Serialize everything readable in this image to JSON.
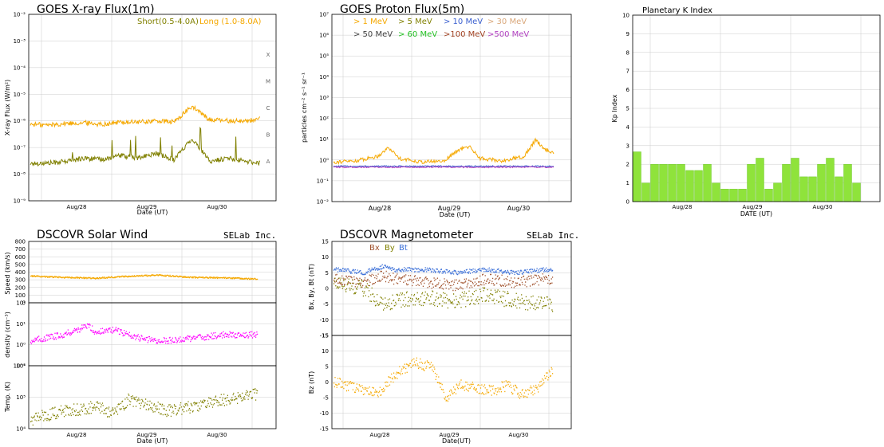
{
  "colors": {
    "short_flux": "#808000",
    "long_flux": "#f5a800",
    "kp_bar": "#8fe33b",
    "kp_bar_edge": "#63c020",
    "proton_1mev": "#f5a800",
    "proton_5mev": "#808000",
    "proton_10mev": "#3a5fcf",
    "proton_30mev": "#d9a77a",
    "proton_50mev": "#404040",
    "proton_60mev": "#22c022",
    "proton_100mev": "#a04020",
    "proton_500mev": "#b040c0",
    "wind_speed": "#f5a800",
    "wind_density": "#ff00ff",
    "wind_temp": "#808000",
    "mag_bx": "#a0522d",
    "mag_by": "#808000",
    "mag_bt": "#3a6fd8",
    "mag_bz": "#f5a800"
  },
  "charts": {
    "xray": {
      "title": "GOES X-ray Flux(1m)",
      "chart_data": {
        "type": "line",
        "title": "GOES X-ray Flux(1m)",
        "xlabel": "Date (UT)",
        "ylabel": "X-ray Flux (W/m²)",
        "yscale": "log",
        "ylim": [
          1e-09,
          0.01
        ],
        "y_tick_labels": [
          "10⁻²",
          "10⁻³",
          "10⁻⁴",
          "10⁻⁵",
          "10⁻⁶",
          "10⁻⁷",
          "10⁻⁸",
          "10⁻⁹"
        ],
        "x_tick_labels": [
          "Aug/28",
          "Aug/29",
          "Aug/30"
        ],
        "flare_class_labels": [
          "X",
          "M",
          "C",
          "B",
          "A"
        ],
        "grid": true,
        "legend": [
          "Short(0.5-4.0A)",
          "Long (1.0-8.0A)"
        ],
        "series": [
          {
            "name": "Short(0.5-4.0A)",
            "x_days": [
              0.0,
              0.25,
              0.5,
              0.75,
              1.0,
              1.25,
              1.5,
              1.75,
              2.0,
              2.25,
              2.5,
              2.75,
              3.0,
              3.25,
              3.5
            ],
            "values": [
              2.5e-08,
              2.6e-08,
              3e-08,
              4e-08,
              3.5e-08,
              5e-08,
              4e-08,
              6e-08,
              3.5e-08,
              2.2e-07,
              3e-08,
              4e-08,
              3e-08,
              2.5e-08,
              3e-08
            ]
          },
          {
            "name": "Long (1.0-8.0A)",
            "x_days": [
              0.0,
              0.25,
              0.5,
              0.75,
              1.0,
              1.25,
              1.5,
              1.75,
              2.0,
              2.25,
              2.5,
              2.75,
              3.0,
              3.25,
              3.5
            ],
            "values": [
              7.5e-07,
              7e-07,
              8e-07,
              8.5e-07,
              7.5e-07,
              9e-07,
              9e-07,
              1e-06,
              9e-07,
              3.5e-06,
              1.1e-06,
              1e-06,
              1e-06,
              1.2e-06,
              1e-06
            ]
          }
        ]
      }
    },
    "proton": {
      "title": "GOES Proton Flux(5m)",
      "chart_data": {
        "type": "line",
        "title": "GOES Proton Flux(5m)",
        "xlabel": "Date (UT)",
        "ylabel": "particles cm⁻² s⁻¹ sr⁻¹",
        "yscale": "log",
        "ylim": [
          0.01,
          10000000
        ],
        "y_tick_labels": [
          "10⁷",
          "10⁶",
          "10⁵",
          "10⁴",
          "10³",
          "10²",
          "10¹",
          "10⁰",
          "10⁻¹",
          "10⁻²"
        ],
        "x_tick_labels": [
          "Aug/28",
          "Aug/29",
          "Aug/30"
        ],
        "grid": true,
        "legend_row1": [
          "> 1 MeV",
          "> 5 MeV",
          "> 10 MeV",
          "> 30 MeV"
        ],
        "legend_row2": [
          "> 50 MeV",
          "> 60 MeV",
          ">100 MeV",
          ">500 MeV"
        ],
        "series": [
          {
            "name": "> 1 MeV",
            "x_days": [
              0.0,
              0.3,
              0.6,
              0.75,
              0.9,
              1.2,
              1.5,
              1.7,
              1.85,
              2.0,
              2.3,
              2.6,
              2.75,
              2.9,
              3.0
            ],
            "values": [
              0.8,
              0.9,
              1.5,
              4,
              1.2,
              0.8,
              0.9,
              3,
              4.5,
              1.2,
              0.9,
              1.5,
              9,
              3,
              2
            ]
          },
          {
            "name": "> 10 MeV",
            "x_days": [
              0.0,
              1.0,
              2.0,
              3.0
            ],
            "values": [
              0.5,
              0.5,
              0.5,
              0.5
            ]
          },
          {
            "name": ">500 MeV",
            "x_days": [
              0.0,
              1.0,
              2.0,
              3.0
            ],
            "values": [
              0.45,
              0.45,
              0.45,
              0.45
            ]
          }
        ]
      }
    },
    "kp": {
      "title": "Planetary K Index",
      "chart_data": {
        "type": "bar",
        "title": "Planetary K Index",
        "xlabel": "DATE (UT)",
        "ylabel": "Kp Index",
        "ylim": [
          0,
          10
        ],
        "y_ticks": [
          0,
          1,
          2,
          3,
          4,
          5,
          6,
          7,
          8,
          9,
          10
        ],
        "x_tick_labels": [
          "Aug/28",
          "Aug/29",
          "Aug/30"
        ],
        "grid": true,
        "values": [
          2.67,
          1.0,
          2.0,
          2.0,
          2.0,
          2.0,
          1.67,
          1.67,
          2.0,
          1.0,
          0.67,
          0.67,
          0.67,
          2.0,
          2.33,
          0.67,
          1.0,
          2.0,
          2.33,
          1.33,
          1.33,
          2.0,
          2.33,
          1.33,
          2.0,
          1.0
        ]
      }
    },
    "wind": {
      "title": "DSCOVR Solar Wind",
      "brand": "SELab Inc.",
      "chart_data": {
        "type": "line",
        "title": "DSCOVR Solar Wind",
        "xlabel": "Date (UT)",
        "x_tick_labels": [
          "Aug/28",
          "Aug/29",
          "Aug/30"
        ],
        "grid": true,
        "subplots": [
          {
            "ylabel": "Speed (km/s)",
            "ylim": [
              0,
              800
            ],
            "y_ticks": [
              0,
              100,
              200,
              300,
              400,
              500,
              600,
              700,
              800
            ],
            "x_days": [
              0.0,
              0.5,
              1.0,
              1.5,
              2.0,
              2.5,
              3.0,
              3.5
            ],
            "values": [
              350,
              330,
              320,
              345,
              360,
              330,
              325,
              310
            ]
          },
          {
            "ylabel": "density (cm⁻³)",
            "yscale": "log",
            "ylim": [
              0.1,
              100
            ],
            "y_tick_labels": [
              "10²",
              "10¹",
              "10⁰",
              "10⁻¹"
            ],
            "x_days": [
              0.0,
              0.5,
              0.9,
              1.0,
              1.3,
              1.7,
              2.0,
              2.5,
              3.0,
              3.5
            ],
            "values": [
              1.5,
              3,
              8,
              4,
              5,
              2,
              1.5,
              2,
              3,
              3
            ]
          },
          {
            "ylabel": "Temp. (K)",
            "yscale": "log",
            "ylim": [
              30000,
              1000000
            ],
            "y_tick_labels": [
              "10⁶",
              "10⁵",
              "10⁴"
            ],
            "x_days": [
              0.0,
              0.5,
              1.0,
              1.3,
              1.5,
              1.7,
              1.9,
              2.1,
              2.5,
              3.0,
              3.5
            ],
            "values": [
              50000,
              80000,
              100000,
              70000,
              150000,
              120000,
              100000,
              80000,
              100000,
              150000,
              200000
            ]
          }
        ]
      }
    },
    "mag": {
      "title": "DSCOVR Magnetometer",
      "brand": "SELab Inc.",
      "chart_data": {
        "type": "line",
        "title": "DSCOVR Magnetometer",
        "xlabel": "Date(UT)",
        "x_tick_labels": [
          "Aug/28",
          "Aug/29",
          "Aug/30"
        ],
        "grid": true,
        "legend": [
          "Bx",
          "By",
          "Bt"
        ],
        "subplots": [
          {
            "ylabel": "Bx, By, Bt (nT)",
            "ylim": [
              -15,
              15
            ],
            "y_ticks": [
              15,
              10,
              5,
              0,
              -5,
              -10,
              -15
            ],
            "series": [
              {
                "name": "Bt",
                "x_days": [
                  0.0,
                  0.5,
                  0.8,
                  1.0,
                  1.5,
                  2.0,
                  2.5,
                  3.0,
                  3.5
                ],
                "values": [
                  6,
                  5,
                  7,
                  6,
                  6,
                  5,
                  6,
                  5,
                  6
                ]
              },
              {
                "name": "Bx",
                "x_days": [
                  0.0,
                  0.5,
                  0.8,
                  1.0,
                  1.5,
                  2.0,
                  2.5,
                  3.0,
                  3.5
                ],
                "values": [
                  3,
                  2,
                  4,
                  3,
                  2,
                  1,
                  3,
                  2,
                  3
                ]
              },
              {
                "name": "By",
                "x_days": [
                  0.0,
                  0.5,
                  0.8,
                  1.0,
                  1.5,
                  2.0,
                  2.5,
                  3.0,
                  3.5
                ],
                "values": [
                  2,
                  0,
                  -5,
                  -4,
                  -3,
                  -4,
                  -2,
                  -4,
                  -5
                ]
              }
            ]
          },
          {
            "ylabel": "Bz (nT)",
            "ylim": [
              -15,
              15
            ],
            "y_ticks": [
              15,
              10,
              5,
              0,
              -5,
              -10,
              -15
            ],
            "series": [
              {
                "name": "Bz",
                "x_days": [
                  0.0,
                  0.4,
                  0.7,
                  0.9,
                  1.1,
                  1.35,
                  1.6,
                  1.85,
                  2.1,
                  2.35,
                  2.6,
                  2.85,
                  3.1,
                  3.35,
                  3.6
                ],
                "values": [
                  0,
                  -2,
                  -4,
                  0,
                  4,
                  6,
                  5,
                  -5,
                  -1,
                  -2,
                  -3,
                  -1,
                  -4,
                  -2,
                  4
                ]
              }
            ]
          }
        ]
      }
    }
  }
}
